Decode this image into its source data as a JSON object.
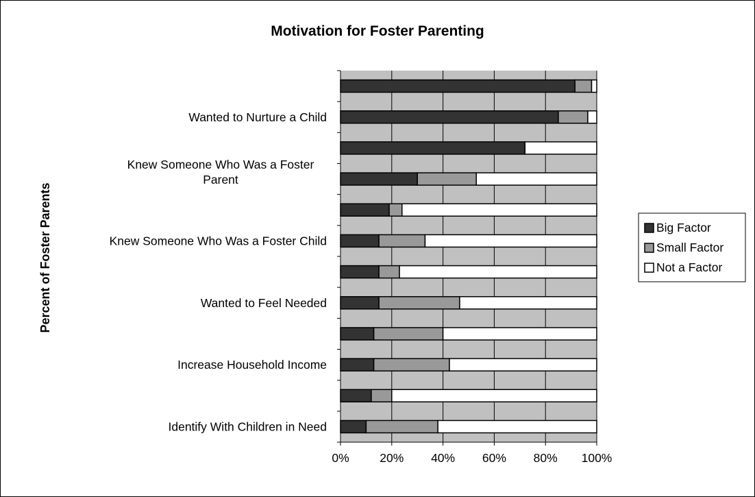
{
  "chart_data": {
    "type": "bar",
    "orientation": "horizontal",
    "stacked": "percent",
    "title": "Motivation for Foster Parenting",
    "ylabel": "Percent of Foster Parents",
    "xlabel": "",
    "xlim": [
      0,
      100
    ],
    "x_ticks": [
      0,
      20,
      40,
      60,
      80,
      100
    ],
    "x_tick_labels": [
      "0%",
      "20%",
      "40%",
      "60%",
      "80%",
      "100%"
    ],
    "grid": "vertical",
    "legend_position": "right",
    "categories": [
      "",
      "Wanted to Nurture a Child",
      "",
      "Knew Someone Who Was a Foster Parent",
      "",
      "Knew Someone Who Was a Foster Child",
      "",
      "Wanted to Feel Needed",
      "",
      "Increase Household Income",
      "",
      "Identify With Children in Need"
    ],
    "category_labels": [
      [],
      [
        "Wanted to Nurture a Child"
      ],
      [],
      [
        "Knew Someone Who Was a Foster",
        "Parent"
      ],
      [],
      [
        "Knew Someone Who Was a Foster Child"
      ],
      [],
      [
        "Wanted to Feel Needed"
      ],
      [],
      [
        "Increase Household Income"
      ],
      [],
      [
        "Identify With Children in Need"
      ]
    ],
    "series": [
      {
        "name": "Big Factor",
        "color": "#333333",
        "values": [
          91.5,
          85,
          72,
          30,
          19,
          15,
          15,
          15,
          13,
          13,
          12,
          10
        ]
      },
      {
        "name": "Small Factor",
        "color": "#999999",
        "values": [
          6.5,
          11.5,
          0,
          23,
          5,
          18,
          8,
          31.5,
          27,
          29.5,
          8,
          28
        ]
      },
      {
        "name": "Not a Factor",
        "color": "#ffffff",
        "values": [
          2,
          3.5,
          28,
          47,
          76,
          67,
          77,
          53.5,
          60,
          57.5,
          80,
          62
        ]
      }
    ],
    "plot_background": "#c0c0c0"
  }
}
